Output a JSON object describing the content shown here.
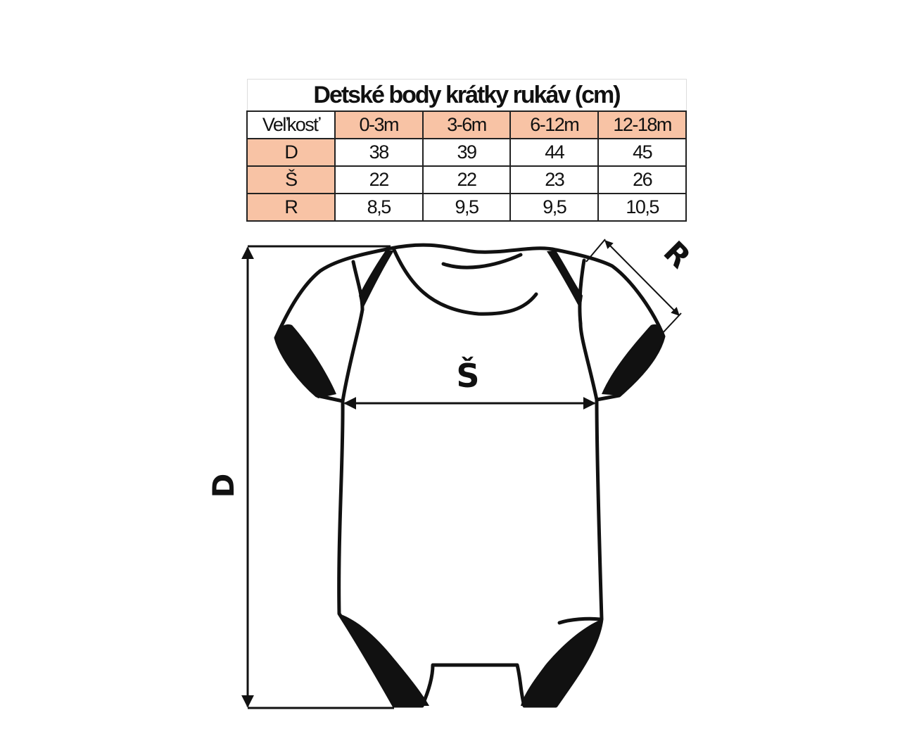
{
  "title": "Detské body krátky rukáv (cm)",
  "table": {
    "header_label": "Veľkosť",
    "sizes": [
      "0-3m",
      "3-6m",
      "6-12m",
      "12-18m"
    ],
    "rows": [
      {
        "label": "D",
        "values": [
          "38",
          "39",
          "44",
          "45"
        ]
      },
      {
        "label": "Š",
        "values": [
          "22",
          "22",
          "23",
          "26"
        ]
      },
      {
        "label": "R",
        "values": [
          "8,5",
          "9,5",
          "9,5",
          "10,5"
        ]
      }
    ]
  },
  "diagram": {
    "length_label": "D",
    "width_label": "Š",
    "sleeve_label": "R"
  },
  "colors": {
    "accent": "#f8c3a5",
    "ink": "#111111"
  }
}
